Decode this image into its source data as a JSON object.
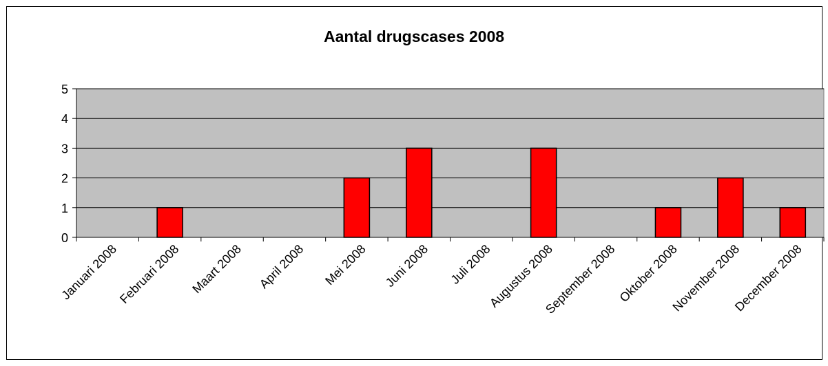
{
  "chart_data": {
    "type": "bar",
    "title": "Aantal drugscases 2008",
    "xlabel": "",
    "ylabel": "",
    "categories": [
      "Januari 2008",
      "Februari 2008",
      "Maart 2008",
      "April 2008",
      "Mei 2008",
      "Juni 2008",
      "Juli 2008",
      "Augustus 2008",
      "September 2008",
      "Oktober 2008",
      "November 2008",
      "December 2008"
    ],
    "values": [
      0,
      1,
      0,
      0,
      2,
      3,
      0,
      3,
      0,
      1,
      2,
      1
    ],
    "ylim": [
      0,
      5
    ],
    "yticks": [
      0,
      1,
      2,
      3,
      4,
      5
    ],
    "grid": true,
    "legend": "none",
    "colors": {
      "bar": "#ff0000",
      "plot_bg": "#c0c0c0",
      "grid": "#000000"
    }
  }
}
